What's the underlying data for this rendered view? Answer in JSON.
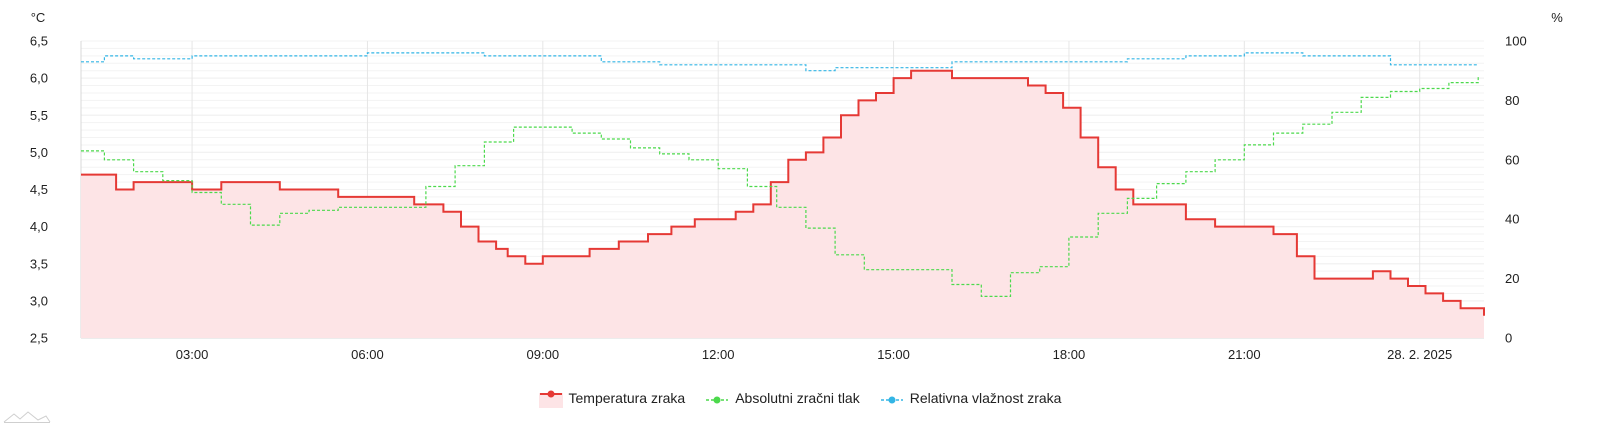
{
  "chart_data": {
    "type": "line",
    "y_left_unit": "°C",
    "y_right_unit": "%",
    "y_left_ticks": [
      "6,5",
      "6,0",
      "5,5",
      "5,0",
      "4,5",
      "4,0",
      "3,5",
      "3,0",
      "2,5"
    ],
    "y_right_ticks": [
      "100",
      "80",
      "60",
      "40",
      "20",
      "0"
    ],
    "x_tick_labels": [
      "03:00",
      "06:00",
      "09:00",
      "12:00",
      "15:00",
      "18:00",
      "21:00",
      "28. 2. 2025"
    ],
    "x_tick_hours": [
      3,
      6,
      9,
      12,
      15,
      18,
      21,
      24
    ],
    "x_range_hours": [
      1.1,
      25.1
    ],
    "y_left_range": [
      2.5,
      6.5
    ],
    "y_right_range": [
      0,
      100
    ],
    "grid": true,
    "legend_position": "bottom",
    "colors": {
      "temperature": "#e53935",
      "temperature_fill": "#fde4e6",
      "pressure": "#4cd94c",
      "humidity": "#33b5e5",
      "grid": "#e6e6e6"
    },
    "series": [
      {
        "name": "Temperatura zraka",
        "axis": "left",
        "style": "solid-area",
        "x": [
          1.1,
          1.4,
          1.7,
          2.0,
          2.5,
          3.0,
          3.5,
          4.0,
          4.5,
          5.0,
          5.5,
          6.0,
          6.5,
          6.8,
          7.0,
          7.3,
          7.6,
          7.9,
          8.2,
          8.4,
          8.7,
          9.0,
          9.3,
          9.8,
          10.3,
          10.8,
          11.2,
          11.6,
          12.0,
          12.3,
          12.6,
          12.9,
          13.2,
          13.5,
          13.8,
          14.1,
          14.4,
          14.7,
          15.0,
          15.3,
          15.6,
          16.0,
          16.5,
          17.0,
          17.3,
          17.6,
          17.9,
          18.2,
          18.5,
          18.8,
          19.1,
          19.4,
          19.7,
          20.0,
          20.5,
          21.0,
          21.5,
          21.9,
          22.2,
          22.5,
          22.9,
          23.2,
          23.5,
          23.8,
          24.1,
          24.4,
          24.7,
          25.1
        ],
        "values": [
          4.7,
          4.7,
          4.5,
          4.6,
          4.6,
          4.5,
          4.6,
          4.6,
          4.5,
          4.5,
          4.4,
          4.4,
          4.4,
          4.3,
          4.3,
          4.2,
          4.0,
          3.8,
          3.7,
          3.6,
          3.5,
          3.6,
          3.6,
          3.7,
          3.8,
          3.9,
          4.0,
          4.1,
          4.1,
          4.2,
          4.3,
          4.6,
          4.9,
          5.0,
          5.2,
          5.5,
          5.7,
          5.8,
          6.0,
          6.1,
          6.1,
          6.0,
          6.0,
          6.0,
          5.9,
          5.8,
          5.6,
          5.2,
          4.8,
          4.5,
          4.3,
          4.3,
          4.3,
          4.1,
          4.0,
          4.0,
          3.9,
          3.6,
          3.3,
          3.3,
          3.3,
          3.4,
          3.3,
          3.2,
          3.1,
          3.0,
          2.9,
          2.8
        ]
      },
      {
        "name": "Absolutni zračni tlak",
        "axis": "right",
        "style": "dashed",
        "x": [
          1.1,
          1.5,
          2.0,
          2.5,
          3.0,
          3.5,
          4.0,
          4.5,
          5.0,
          5.5,
          6.0,
          6.5,
          7.0,
          7.5,
          8.0,
          8.5,
          9.0,
          9.5,
          10.0,
          10.5,
          11.0,
          11.5,
          12.0,
          12.5,
          13.0,
          13.5,
          14.0,
          14.5,
          15.0,
          15.5,
          16.0,
          16.5,
          17.0,
          17.5,
          18.0,
          18.5,
          19.0,
          19.5,
          20.0,
          20.5,
          21.0,
          21.5,
          22.0,
          22.5,
          23.0,
          23.5,
          24.0,
          24.5,
          25.0
        ],
        "values": [
          63,
          60,
          56,
          53,
          49,
          45,
          38,
          42,
          43,
          44,
          44,
          44,
          51,
          58,
          66,
          71,
          71,
          69,
          67,
          64,
          62,
          60,
          57,
          51,
          44,
          37,
          28,
          23,
          23,
          23,
          18,
          14,
          22,
          24,
          34,
          42,
          47,
          52,
          56,
          60,
          65,
          69,
          72,
          76,
          81,
          83,
          84,
          86,
          88
        ]
      },
      {
        "name": "Relativna vlažnost zraka",
        "axis": "right",
        "style": "dashed",
        "x": [
          1.1,
          1.5,
          2.0,
          3.0,
          4.0,
          5.0,
          6.0,
          7.0,
          8.0,
          9.0,
          10.0,
          11.0,
          12.0,
          13.0,
          13.5,
          14.0,
          15.0,
          16.0,
          17.0,
          18.0,
          19.0,
          20.0,
          21.0,
          22.0,
          23.0,
          23.5,
          24.0,
          25.0
        ],
        "values": [
          93,
          95,
          94,
          95,
          95,
          95,
          96,
          96,
          95,
          95,
          93,
          92,
          92,
          92,
          90,
          91,
          91,
          93,
          93,
          93,
          94,
          95,
          96,
          95,
          95,
          92,
          92,
          92
        ]
      }
    ]
  },
  "legend": [
    {
      "label": "Temperatura zraka",
      "color": "#e53935",
      "fill": "#fde4e6",
      "style": "solid"
    },
    {
      "label": "Absolutni zračni tlak",
      "color": "#4cd94c",
      "fill": "",
      "style": "dashed"
    },
    {
      "label": "Relativna vlažnost zraka",
      "color": "#33b5e5",
      "fill": "",
      "style": "dashed"
    }
  ]
}
